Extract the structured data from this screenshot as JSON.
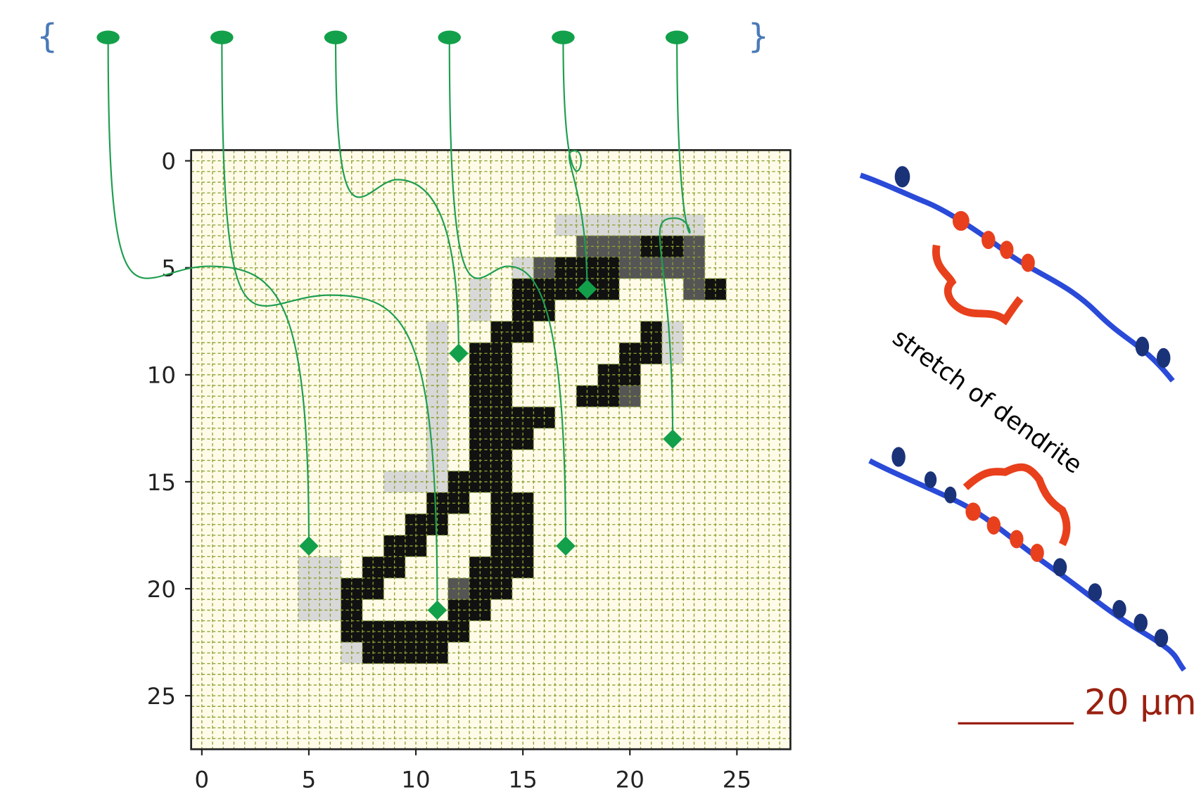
{
  "plot": {
    "xlim": [
      -0.5,
      27.5
    ],
    "ylim": [
      27.5,
      -0.5
    ],
    "xticks": [
      0,
      5,
      10,
      15,
      20,
      25
    ],
    "yticks": [
      0,
      5,
      10,
      15,
      20,
      25
    ]
  },
  "samples": [
    {
      "x": 5,
      "y": 18
    },
    {
      "x": 11,
      "y": 21
    },
    {
      "x": 12,
      "y": 9
    },
    {
      "x": 17,
      "y": 18
    },
    {
      "x": 18,
      "y": 6
    },
    {
      "x": 22,
      "y": 13
    }
  ],
  "set_open": "{",
  "set_close": "}",
  "dendrite": {
    "label": "stretch of dendrite",
    "scale_bar": "20 µm"
  }
}
